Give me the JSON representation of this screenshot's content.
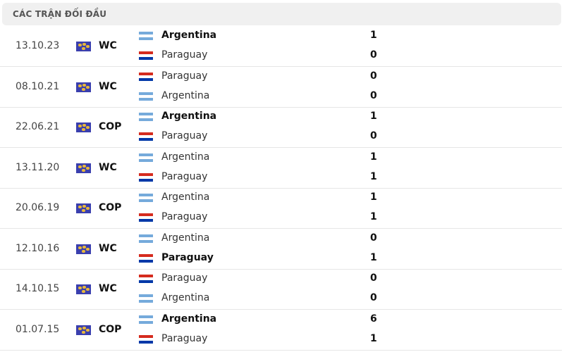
{
  "header": {
    "title": "CÁC TRẬN ĐỐI ĐẦU"
  },
  "colors": {
    "argentina_flag": "#75aadb",
    "paraguay_flag": "#d52b1e"
  },
  "matches": [
    {
      "date": "13.10.23",
      "competition": "WC",
      "home": {
        "team": "Argentina",
        "flag": "argentina",
        "score": "1",
        "winner": true
      },
      "away": {
        "team": "Paraguay",
        "flag": "paraguay",
        "score": "0",
        "winner": false
      }
    },
    {
      "date": "08.10.21",
      "competition": "WC",
      "home": {
        "team": "Paraguay",
        "flag": "paraguay",
        "score": "0",
        "winner": false
      },
      "away": {
        "team": "Argentina",
        "flag": "argentina",
        "score": "0",
        "winner": false
      }
    },
    {
      "date": "22.06.21",
      "competition": "COP",
      "home": {
        "team": "Argentina",
        "flag": "argentina",
        "score": "1",
        "winner": true
      },
      "away": {
        "team": "Paraguay",
        "flag": "paraguay",
        "score": "0",
        "winner": false
      }
    },
    {
      "date": "13.11.20",
      "competition": "WC",
      "home": {
        "team": "Argentina",
        "flag": "argentina",
        "score": "1",
        "winner": false
      },
      "away": {
        "team": "Paraguay",
        "flag": "paraguay",
        "score": "1",
        "winner": false
      }
    },
    {
      "date": "20.06.19",
      "competition": "COP",
      "home": {
        "team": "Argentina",
        "flag": "argentina",
        "score": "1",
        "winner": false
      },
      "away": {
        "team": "Paraguay",
        "flag": "paraguay",
        "score": "1",
        "winner": false
      }
    },
    {
      "date": "12.10.16",
      "competition": "WC",
      "home": {
        "team": "Argentina",
        "flag": "argentina",
        "score": "0",
        "winner": false
      },
      "away": {
        "team": "Paraguay",
        "flag": "paraguay",
        "score": "1",
        "winner": true
      }
    },
    {
      "date": "14.10.15",
      "competition": "WC",
      "home": {
        "team": "Paraguay",
        "flag": "paraguay",
        "score": "0",
        "winner": false
      },
      "away": {
        "team": "Argentina",
        "flag": "argentina",
        "score": "0",
        "winner": false
      }
    },
    {
      "date": "01.07.15",
      "competition": "COP",
      "home": {
        "team": "Argentina",
        "flag": "argentina",
        "score": "6",
        "winner": true
      },
      "away": {
        "team": "Paraguay",
        "flag": "paraguay",
        "score": "1",
        "winner": false
      }
    }
  ]
}
